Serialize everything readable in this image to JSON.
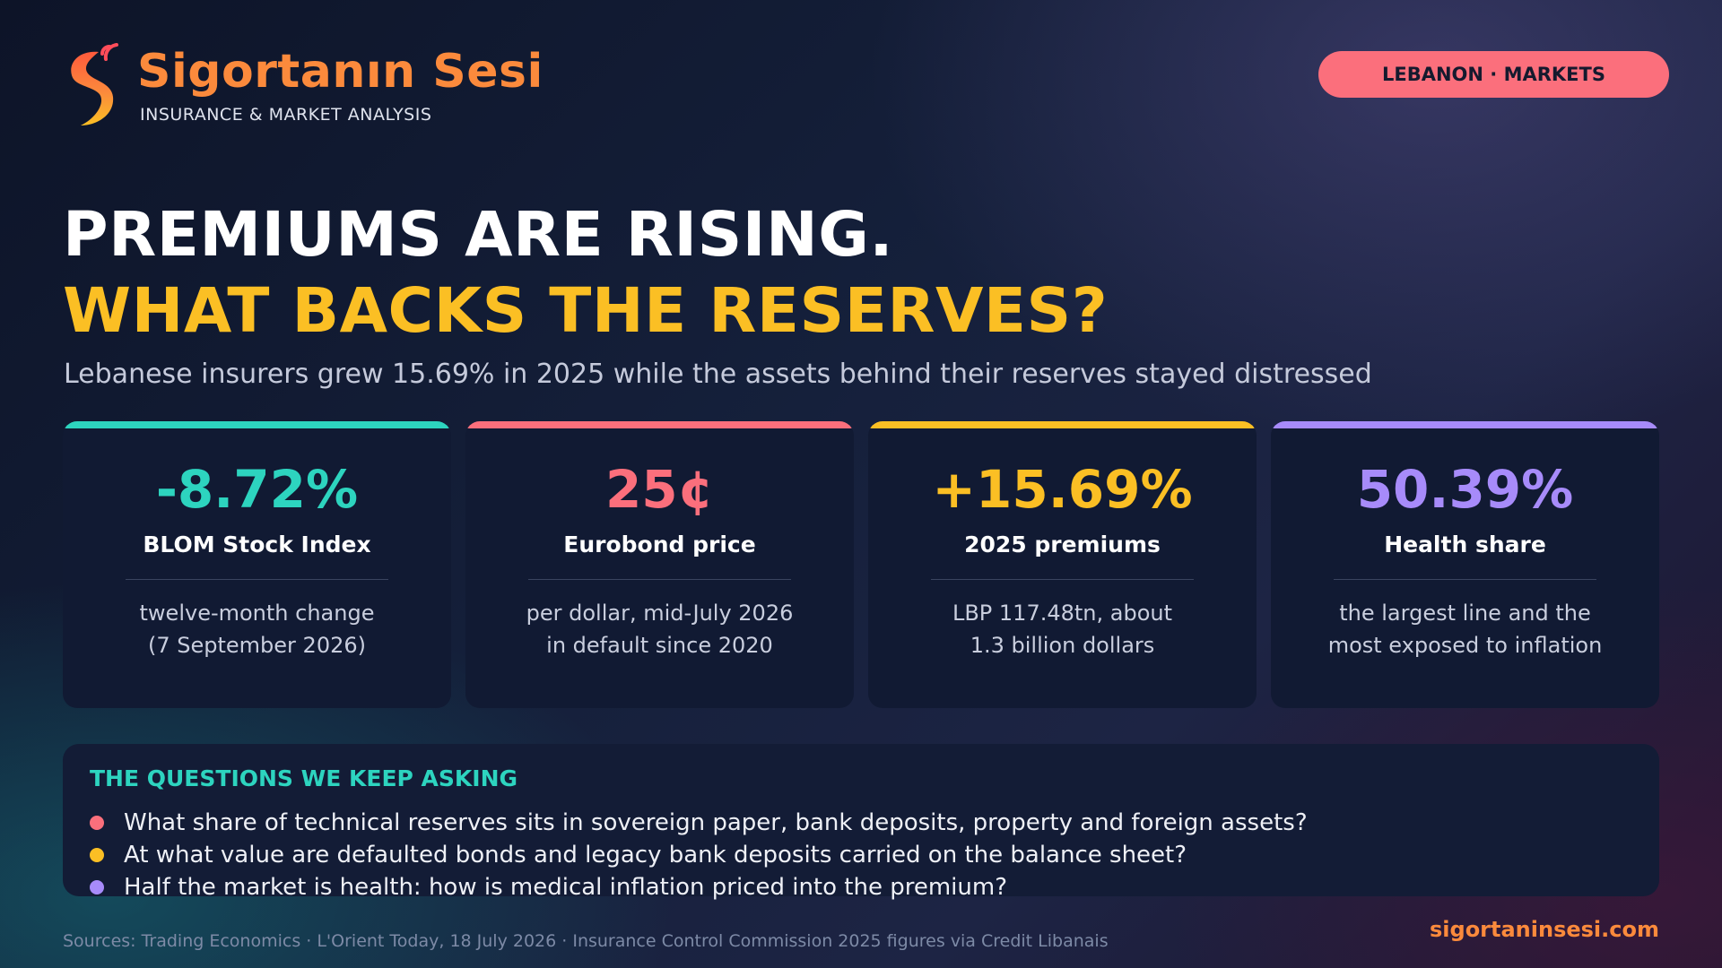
{
  "header": {
    "brand_name": "Sigortanın Sesi",
    "brand_tagline": "INSURANCE & MARKET ANALYSIS",
    "category_pill": "LEBANON · MARKETS"
  },
  "headline": {
    "line1": "PREMIUMS ARE RISING.",
    "line2": "WHAT BACKS THE RESERVES?",
    "subtitle": "Lebanese insurers grew 15.69% in 2025 while the assets behind their reserves stayed distressed"
  },
  "stats": [
    {
      "value": "-8.72%",
      "label": "BLOM Stock Index",
      "desc_line1": "twelve-month change",
      "desc_line2": "(7 September 2026)",
      "color": "#2dd4bf"
    },
    {
      "value": "25¢",
      "label": "Eurobond price",
      "desc_line1": "per dollar, mid-July 2026",
      "desc_line2": "in default since 2020",
      "color": "#fb6f7c"
    },
    {
      "value": "+15.69%",
      "label": "2025 premiums",
      "desc_line1": "LBP 117.48tn, about",
      "desc_line2": "1.3 billion dollars",
      "color": "#fbbf24"
    },
    {
      "value": "50.39%",
      "label": "Health share",
      "desc_line1": "the largest line and the",
      "desc_line2": "most exposed to inflation",
      "color": "#a78bfa"
    }
  ],
  "questions": {
    "title": "THE QUESTIONS WE KEEP ASKING",
    "items": [
      {
        "text": "What share of technical reserves sits in sovereign paper, bank deposits, property and foreign assets?",
        "color": "#fb6f7c"
      },
      {
        "text": "At what value are defaulted bonds and legacy bank deposits carried on the balance sheet?",
        "color": "#fbbf24"
      },
      {
        "text": "Half the market is health: how is medical inflation priced into the premium?",
        "color": "#a78bfa"
      }
    ]
  },
  "footer": {
    "sources": "Sources: Trading Economics · L'Orient Today, 18 July 2026 · Insurance Control Commission 2025 figures via Credit Libanais",
    "website": "sigortaninsesi.com"
  },
  "colors": {
    "brand_orange": "#fb8a3c",
    "accent_yellow": "#fbbf24",
    "accent_teal": "#2dd4bf",
    "accent_pink": "#fb6f7c",
    "accent_purple": "#a78bfa"
  }
}
